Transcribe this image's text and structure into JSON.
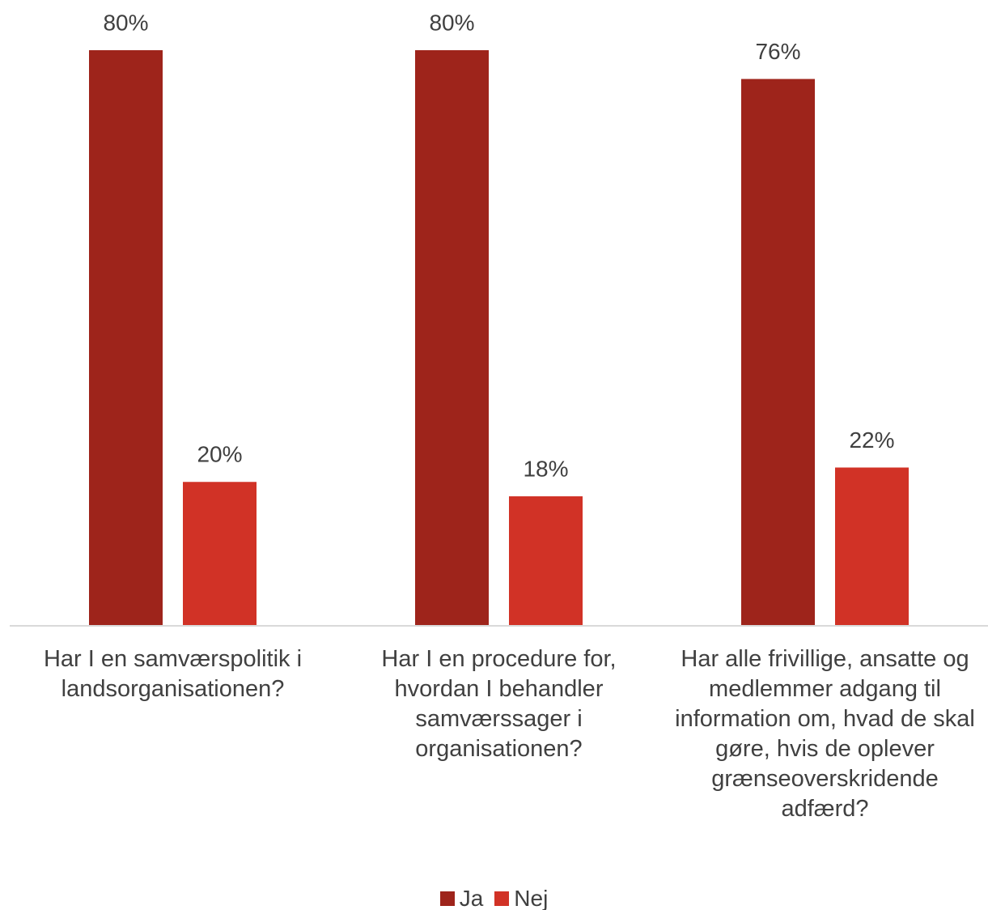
{
  "chart_data": {
    "type": "bar",
    "categories": [
      "Har I en samværspolitik i landsorganisationen?",
      "Har I en procedure for, hvordan I behandler samværssager i organisationen?",
      "Har alle frivillige, ansatte og medlemmer adgang til information om, hvad de skal gøre, hvis de oplever grænseoverskridende adfærd?"
    ],
    "series": [
      {
        "name": "Ja",
        "color": "#9e241b",
        "values": [
          80,
          80,
          76
        ],
        "value_labels": [
          "80%",
          "80%",
          "76%"
        ]
      },
      {
        "name": "Nej",
        "color": "#d13226",
        "values": [
          20,
          18,
          22
        ],
        "value_labels": [
          "20%",
          "18%",
          "22%"
        ]
      }
    ],
    "ylim": [
      0,
      80
    ],
    "legend": "bottom"
  }
}
